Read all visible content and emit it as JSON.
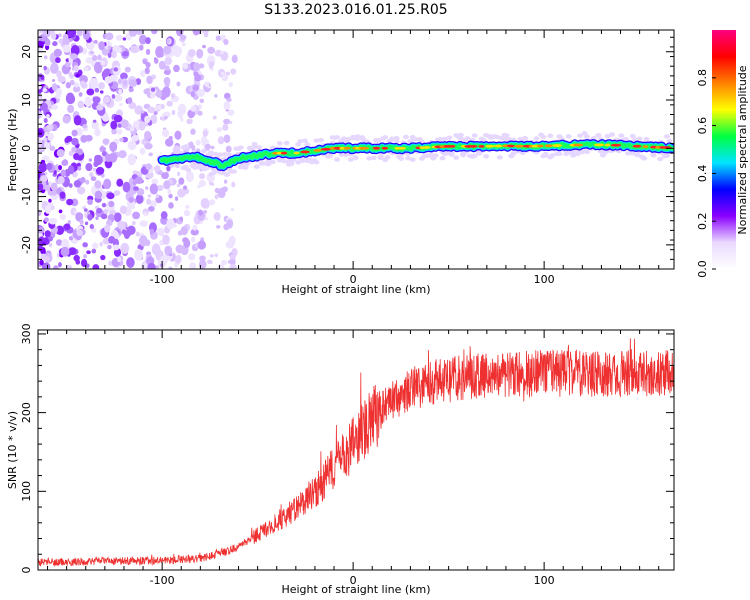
{
  "title": "S133.2023.016.01.25.R05",
  "chart_data": [
    {
      "type": "heatmap",
      "xlabel": "Height of straight line (km)",
      "ylabel": "Frequency (Hz)",
      "xlim": [
        -165,
        168
      ],
      "ylim": [
        -25,
        24.5
      ],
      "xticks": [
        -100,
        0,
        100
      ],
      "yticks": [
        -20,
        -10,
        0,
        10,
        20
      ],
      "x_tick_labels": [
        "-100",
        "0",
        "100"
      ],
      "y_tick_labels": [
        "-20",
        "-10",
        "0",
        "10",
        "20"
      ],
      "colorbar": {
        "label": "Normalized spectral amplitude",
        "range": [
          0,
          1
        ],
        "ticks": [
          0.0,
          0.2,
          0.4,
          0.6,
          0.8
        ],
        "tick_labels": [
          "0.0",
          "0.2",
          "0.4",
          "0.6",
          "0.8"
        ],
        "colors": [
          "#ffffff",
          "#ead9ff",
          "#8a00ff",
          "#0000ff",
          "#00e5ff",
          "#00ff40",
          "#ffff00",
          "#ff8000",
          "#ff0000",
          "#ff0080"
        ]
      },
      "noise_region_x": [
        -165,
        -70
      ],
      "ridge": {
        "x": [
          -100,
          -90,
          -82,
          -77,
          -72,
          -68,
          -60,
          -50,
          -40,
          -30,
          -20,
          -10,
          0,
          10,
          20,
          30,
          40,
          50,
          60,
          70,
          80,
          90,
          100,
          110,
          120,
          130,
          140,
          150,
          160,
          168
        ],
        "y": [
          -2.5,
          -2.2,
          -1.8,
          -2.5,
          -3.0,
          -3.8,
          -2.0,
          -1.5,
          -1.0,
          -1.0,
          -0.5,
          0,
          0,
          0,
          0,
          0,
          0.2,
          0.4,
          0.4,
          0.4,
          0.5,
          0.4,
          0.5,
          0.6,
          0.7,
          0.7,
          0.6,
          0.4,
          0.2,
          0.1
        ]
      }
    },
    {
      "type": "line",
      "xlabel": "Height of straight line (km)",
      "ylabel": "SNR (10 * v/v)",
      "xlim": [
        -165,
        168
      ],
      "ylim": [
        0,
        305
      ],
      "xticks": [
        -100,
        0,
        100
      ],
      "yticks": [
        0,
        100,
        200,
        300
      ],
      "x_tick_labels": [
        "-100",
        "0",
        "100"
      ],
      "y_tick_labels": [
        "0",
        "100",
        "200",
        "300"
      ],
      "color": "#ee3030",
      "trend": {
        "x": [
          -165,
          -100,
          -80,
          -70,
          -60,
          -50,
          -40,
          -30,
          -20,
          -10,
          0,
          10,
          20,
          30,
          40,
          60,
          80,
          100,
          120,
          140,
          168
        ],
        "y": [
          10,
          12,
          15,
          20,
          30,
          45,
          60,
          80,
          100,
          130,
          160,
          190,
          215,
          230,
          238,
          245,
          248,
          250,
          250,
          250,
          250
        ]
      }
    }
  ]
}
